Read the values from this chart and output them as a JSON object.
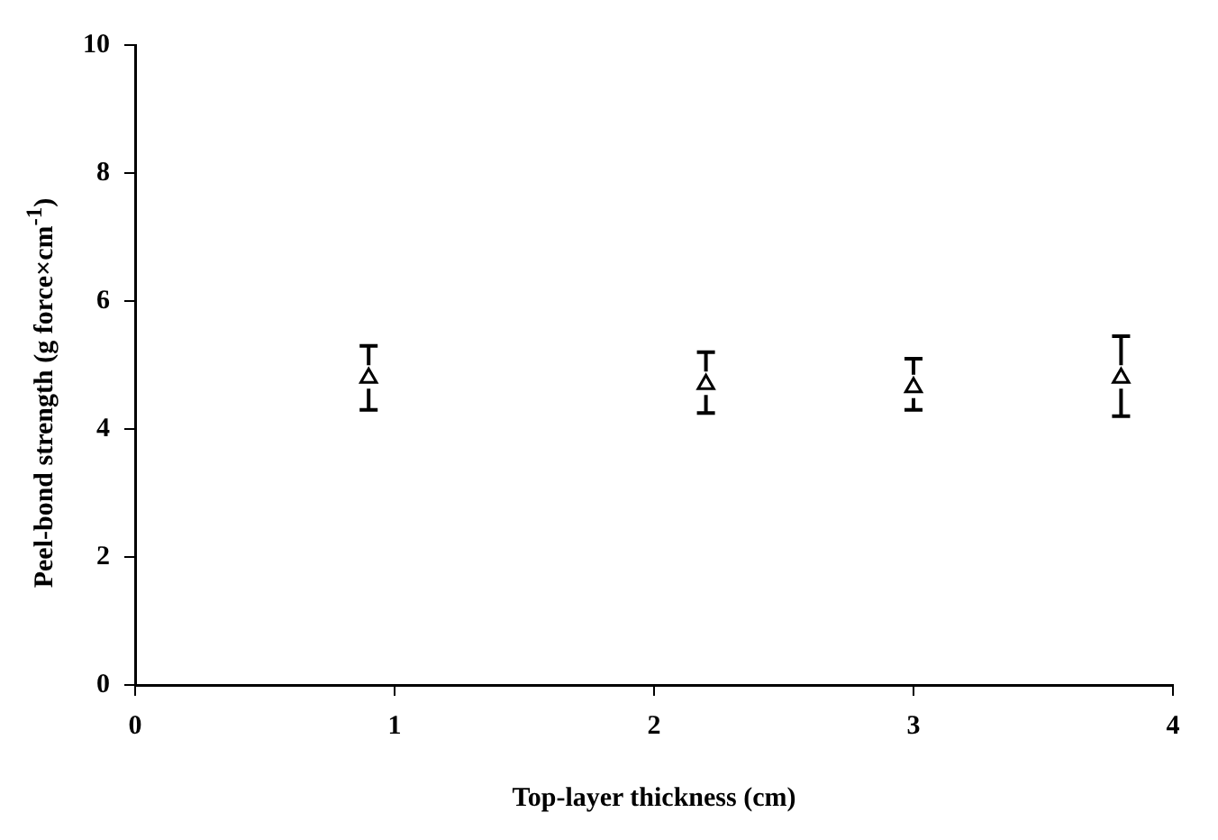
{
  "chart_data": {
    "type": "scatter",
    "xlabel": "Top-layer thickness (cm)",
    "ylabel": "Peel-bond strength (g force×cm$^{-1}$)",
    "x": [
      0.9,
      2.2,
      3.0,
      3.8
    ],
    "values": [
      4.8,
      4.7,
      4.65,
      4.8
    ],
    "errors": [
      [
        4.3,
        5.3
      ],
      [
        4.25,
        5.2
      ],
      [
        4.3,
        5.1
      ],
      [
        4.2,
        5.45
      ]
    ],
    "color": "#000000",
    "marker": "triangle",
    "xlim": [
      0,
      4
    ],
    "xticks": [
      0,
      1,
      2,
      3,
      4
    ],
    "ylim": [
      0,
      10
    ],
    "yticks": [
      0,
      2,
      4,
      6,
      8,
      10
    ],
    "grid": false,
    "legend": false
  }
}
